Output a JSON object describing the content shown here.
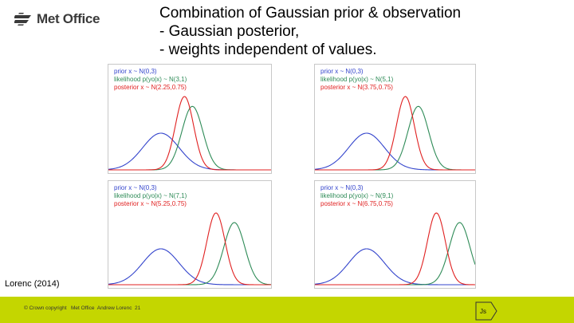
{
  "header": {
    "logo_text": "Met Office",
    "title_lines": [
      "Combination of Gaussian prior & observation",
      "- Gaussian posterior,",
      "- weights independent of values."
    ]
  },
  "colors": {
    "prior": "#3344cc",
    "likelihood": "#2e8b57",
    "posterior": "#e02020",
    "footer": "#c4d600"
  },
  "chart_data": [
    {
      "type": "line",
      "legend": [
        "prior x ~ N(0,3)",
        "likelihood p(yo|x) ~ N(3,1)",
        "posterior x ~ N(2.25,0.75)"
      ],
      "series": [
        {
          "name": "prior x ~ N(0,3)",
          "mean": 0,
          "variance": 3
        },
        {
          "name": "likelihood p(yo|x) ~ N(3,1)",
          "mean": 3,
          "variance": 1
        },
        {
          "name": "posterior x ~ N(2.25,0.75)",
          "mean": 2.25,
          "variance": 0.75
        }
      ]
    },
    {
      "type": "line",
      "legend": [
        "prior x ~ N(0,3)",
        "likelihood p(yo|x) ~ N(5,1)",
        "posterior x ~ N(3.75,0.75)"
      ],
      "series": [
        {
          "name": "prior x ~ N(0,3)",
          "mean": 0,
          "variance": 3
        },
        {
          "name": "likelihood p(yo|x) ~ N(5,1)",
          "mean": 5,
          "variance": 1
        },
        {
          "name": "posterior x ~ N(3.75,0.75)",
          "mean": 3.75,
          "variance": 0.75
        }
      ]
    },
    {
      "type": "line",
      "legend": [
        "prior x ~ N(0,3)",
        "likelihood p(yo|x) ~ N(7,1)",
        "posterior x ~ N(5.25,0.75)"
      ],
      "series": [
        {
          "name": "prior x ~ N(0,3)",
          "mean": 0,
          "variance": 3
        },
        {
          "name": "likelihood p(yo|x) ~ N(7,1)",
          "mean": 7,
          "variance": 1
        },
        {
          "name": "posterior x ~ N(5.25,0.75)",
          "mean": 5.25,
          "variance": 0.75
        }
      ]
    },
    {
      "type": "line",
      "legend": [
        "prior x ~ N(0,3)",
        "likelihood p(yo|x) ~ N(9,1)",
        "posterior x ~ N(6.75,0.75)"
      ],
      "series": [
        {
          "name": "prior x ~ N(0,3)",
          "mean": 0,
          "variance": 3
        },
        {
          "name": "likelihood p(yo|x) ~ N(9,1)",
          "mean": 9,
          "variance": 1
        },
        {
          "name": "posterior x ~ N(6.75,0.75)",
          "mean": 6.75,
          "variance": 0.75
        }
      ]
    }
  ],
  "citation": "Lorenc (2014)",
  "footer": {
    "text": "© Crown copyright   Met Office  Andrew Lorenc  21",
    "nav_label": "Js"
  }
}
